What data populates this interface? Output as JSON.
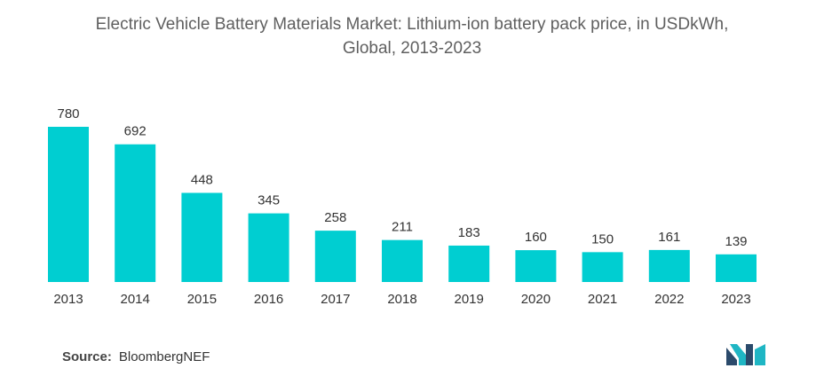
{
  "header": {
    "title_line1": "Electric Vehicle Battery Materials Market: Lithium-ion battery pack price, in USDkWh,",
    "title_line2": "Global, 2013-2023"
  },
  "footer": {
    "source_label": "Source:",
    "source_value": "BloombergNEF"
  },
  "colors": {
    "bar": "#00CED1",
    "logo_dark": "#2b4a6b",
    "logo_teal": "#1fb6c4"
  },
  "logo": {
    "icon": "mordor-logo-icon"
  },
  "chart_data": {
    "type": "bar",
    "title": "Electric Vehicle Battery Materials Market: Lithium-ion battery pack price, in USDkWh, Global, 2013-2023",
    "categories": [
      "2013",
      "2014",
      "2015",
      "2016",
      "2017",
      "2018",
      "2019",
      "2020",
      "2021",
      "2022",
      "2023"
    ],
    "values": [
      780,
      692,
      448,
      345,
      258,
      211,
      183,
      160,
      150,
      161,
      139
    ],
    "xlabel": "",
    "ylabel": "",
    "ylim": [
      0,
      800
    ],
    "grid": false,
    "legend": "none",
    "data_labels": true
  }
}
